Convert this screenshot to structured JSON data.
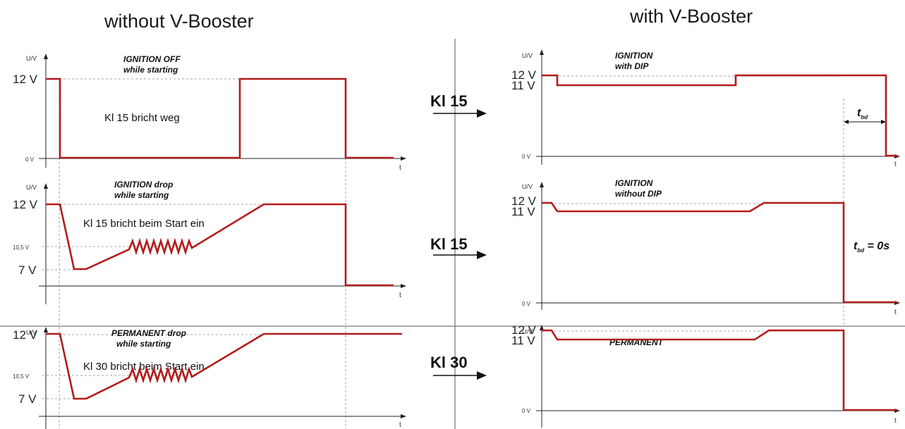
{
  "headings": {
    "left": "without V-Booster",
    "right": "with V-Booster"
  },
  "labels": {
    "u_axis": "U/V",
    "t_axis": "t",
    "v12": "12 V",
    "v11": "11 V",
    "v105": "10,5 V",
    "v7": "7 V",
    "v0": "0 V"
  },
  "panels": {
    "left1": {
      "title1": "IGNITION OFF",
      "title2": "while starting",
      "desc": "Kl 15 bricht weg"
    },
    "left2": {
      "title1": "IGNITION drop",
      "title2": "while starting",
      "desc": "Kl 15 bricht beim Start ein"
    },
    "left3": {
      "title1": "PERMANENT drop",
      "title2": "while starting",
      "desc": "Kl 30 bricht beim Start ein"
    },
    "right1": {
      "title1": "IGNITION",
      "title2": "with DIP",
      "tbd_main": "t",
      "tbd_sub": "bd"
    },
    "right2": {
      "title1": "IGNITION",
      "title2": "without DIP",
      "tbd_main": "t",
      "tbd_sub": "bd",
      "tbd_eq": " = 0s"
    },
    "right3": {
      "title1": "PERMANENT"
    }
  },
  "connectors": [
    "Kl 15",
    "Kl 15",
    "Kl 30"
  ],
  "colors": {
    "signal": "#b31b1b"
  }
}
